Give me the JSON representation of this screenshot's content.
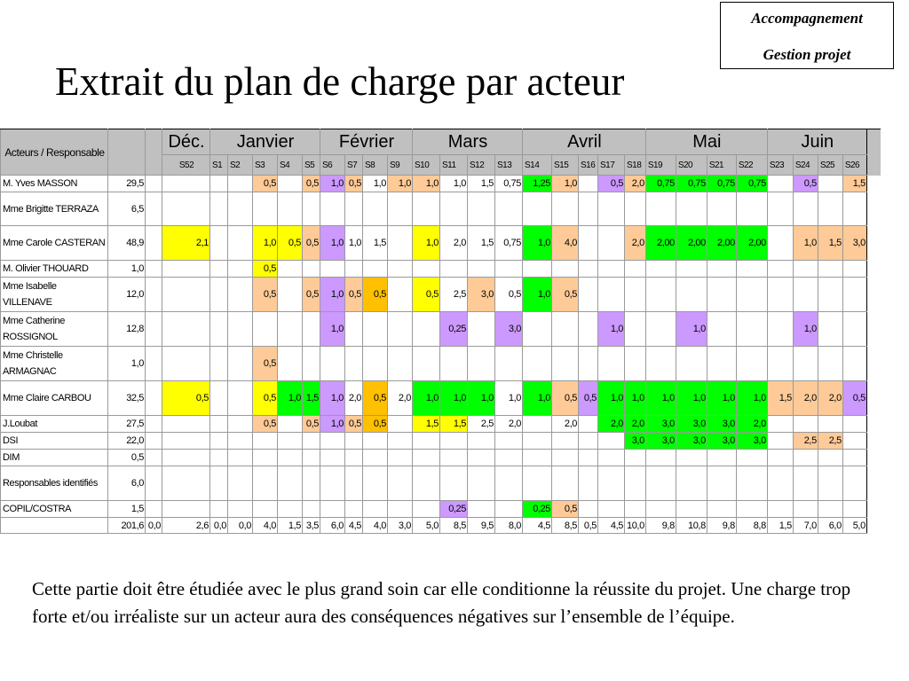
{
  "badge": {
    "line1": "Accompagnement",
    "line2": "Gestion projet"
  },
  "title": "Extrait du plan de charge par acteur",
  "table": {
    "header": {
      "actors": "Acteurs / Responsable"
    },
    "months": [
      "Déc.",
      "Janvier",
      "Février",
      "Mars",
      "Avril",
      "Mai",
      "Juin"
    ],
    "weeks": [
      "S52",
      "S1",
      "S2",
      "S3",
      "S4",
      "S5",
      "S6",
      "S7",
      "S8",
      "S9",
      "S10",
      "S11",
      "S12",
      "S13",
      "S14",
      "S15",
      "S16",
      "S17",
      "S18",
      "S19",
      "S20",
      "S21",
      "S22",
      "S23",
      "S24",
      "S25",
      "S26"
    ],
    "legend_colors": {
      "yellow": "#ffff00",
      "orange": "#fecb98",
      "purple": "#cc99ff",
      "green": "#00ff00",
      "amber": "#ffc000",
      "header_grey": "#c0c0c0"
    },
    "rows": [
      {
        "actor": "M. Yves MASSON",
        "total": "29,5",
        "c": [
          "",
          "",
          "",
          "0,5",
          "",
          "0,5",
          "1,0",
          "0,5",
          "1,0",
          "1,0",
          "1,0",
          "1,0",
          "1,5",
          "0,75",
          "1,25",
          "1,0",
          "",
          "0,5",
          "2,0",
          "0,75",
          "0,75",
          "0,75",
          "0,75",
          "",
          "0,5",
          "",
          "1,5"
        ]
      },
      {
        "actor": "Mme Brigitte TERRAZA",
        "total": "6,5",
        "c": [
          "",
          "",
          "",
          "",
          "",
          "",
          "",
          "",
          "",
          "",
          "",
          "",
          "",
          "",
          "",
          "",
          "",
          "",
          "",
          "",
          "",
          "",
          "",
          "",
          "",
          "",
          ""
        ]
      },
      {
        "actor": "Mme Carole CASTERAN",
        "total": "48,9",
        "c": [
          "2,1",
          "",
          "",
          "1,0",
          "0,5",
          "0,5",
          "1,0",
          "1,0",
          "1,5",
          "",
          "1,0",
          "2,0",
          "1,5",
          "0,75",
          "1,0",
          "4,0",
          "",
          "",
          "2,0",
          "2,00",
          "2,00",
          "2,00",
          "2,00",
          "",
          "1,0",
          "1,5",
          "3,0"
        ]
      },
      {
        "actor": "M. Olivier THOUARD",
        "total": "1,0",
        "c": [
          "",
          "",
          "",
          "0,5",
          "",
          "",
          "",
          "",
          "",
          "",
          "",
          "",
          "",
          "",
          "",
          "",
          "",
          "",
          "",
          "",
          "",
          "",
          "",
          "",
          "",
          "",
          ""
        ]
      },
      {
        "actor": "Mme Isabelle VILLENAVE",
        "total": "12,0",
        "c": [
          "",
          "",
          "",
          "0,5",
          "",
          "0,5",
          "1,0",
          "0,5",
          "0,5",
          "",
          "0,5",
          "2,5",
          "3,0",
          "0,5",
          "1,0",
          "0,5",
          "",
          "",
          "",
          "",
          "",
          "",
          "",
          "",
          "",
          "",
          ""
        ]
      },
      {
        "actor": "Mme Catherine ROSSIGNOL",
        "total": "12,8",
        "c": [
          "",
          "",
          "",
          "",
          "",
          "",
          "1,0",
          "",
          "",
          "",
          "",
          "0,25",
          "",
          "3,0",
          "",
          "",
          "",
          "1,0",
          "",
          "",
          "1,0",
          "",
          "",
          "",
          "1,0",
          "",
          ""
        ]
      },
      {
        "actor": "Mme Christelle ARMAGNAC",
        "total": "1,0",
        "c": [
          "",
          "",
          "",
          "0,5",
          "",
          "",
          "",
          "",
          "",
          "",
          "",
          "",
          "",
          "",
          "",
          "",
          "",
          "",
          "",
          "",
          "",
          "",
          "",
          "",
          "",
          "",
          ""
        ]
      },
      {
        "actor": "Mme Claire CARBOU",
        "total": "32,5",
        "c": [
          "0,5",
          "",
          "",
          "0,5",
          "1,0",
          "1,5",
          "1,0",
          "2,0",
          "0,5",
          "2,0",
          "1,0",
          "1,0",
          "1,0",
          "1,0",
          "1,0",
          "0,5",
          "0,5",
          "1,0",
          "1,0",
          "1,0",
          "1,0",
          "1,0",
          "1,0",
          "1,5",
          "2,0",
          "2,0",
          "0,5"
        ]
      },
      {
        "actor": "J.Loubat",
        "total": "27,5",
        "c": [
          "",
          "",
          "",
          "0,5",
          "",
          "0,5",
          "1,0",
          "0,5",
          "0,5",
          "",
          "1,5",
          "1,5",
          "2,5",
          "2,0",
          "",
          "2,0",
          "",
          "2,0",
          "2,0",
          "3,0",
          "3,0",
          "3,0",
          "2,0",
          "",
          "",
          "",
          ""
        ]
      },
      {
        "actor": "DSI",
        "total": "22,0",
        "c": [
          "",
          "",
          "",
          "",
          "",
          "",
          "",
          "",
          "",
          "",
          "",
          "",
          "",
          "",
          "",
          "",
          "",
          "",
          "3,0",
          "3,0",
          "3,0",
          "3,0",
          "3,0",
          "",
          "2,5",
          "2,5",
          ""
        ]
      },
      {
        "actor": "DIM",
        "total": "0,5",
        "c": [
          "",
          "",
          "",
          "",
          "",
          "",
          "",
          "",
          "",
          "",
          "",
          "",
          "",
          "",
          "",
          "",
          "",
          "",
          "",
          "",
          "",
          "",
          "",
          "",
          "",
          "",
          ""
        ]
      },
      {
        "actor": "Responsables identifiés",
        "total": "6,0",
        "c": [
          "",
          "",
          "",
          "",
          "",
          "",
          "",
          "",
          "",
          "",
          "",
          "",
          "",
          "",
          "",
          "",
          "",
          "",
          "",
          "",
          "",
          "",
          "",
          "",
          "",
          "",
          ""
        ]
      },
      {
        "actor": "COPIL/COSTRA",
        "total": "1,5",
        "c": [
          "",
          "",
          "",
          "",
          "",
          "",
          "",
          "",
          "",
          "",
          "",
          "0,25",
          "",
          "",
          "0,25",
          "0,5",
          "",
          "",
          "",
          "",
          "",
          "",
          "",
          "",
          "",
          "",
          ""
        ]
      }
    ],
    "totals": {
      "total": "201,6",
      "zero": "0,0",
      "c": [
        "2,6",
        "0,0",
        "0,0",
        "4,0",
        "1,5",
        "3,5",
        "6,0",
        "4,5",
        "4,0",
        "3,0",
        "5,0",
        "8,5",
        "9,5",
        "8,0",
        "4,5",
        "8,5",
        "0,5",
        "4,5",
        "10,0",
        "9,8",
        "10,8",
        "9,8",
        "8,8",
        "1,5",
        "7,0",
        "6,0",
        "5,0"
      ]
    }
  },
  "paragraph": "Cette partie doit être étudiée avec le plus grand soin car elle conditionne la réussite du projet. Une charge trop forte et/ou irréaliste sur un acteur aura des conséquences négatives sur l’ensemble de l’équipe."
}
